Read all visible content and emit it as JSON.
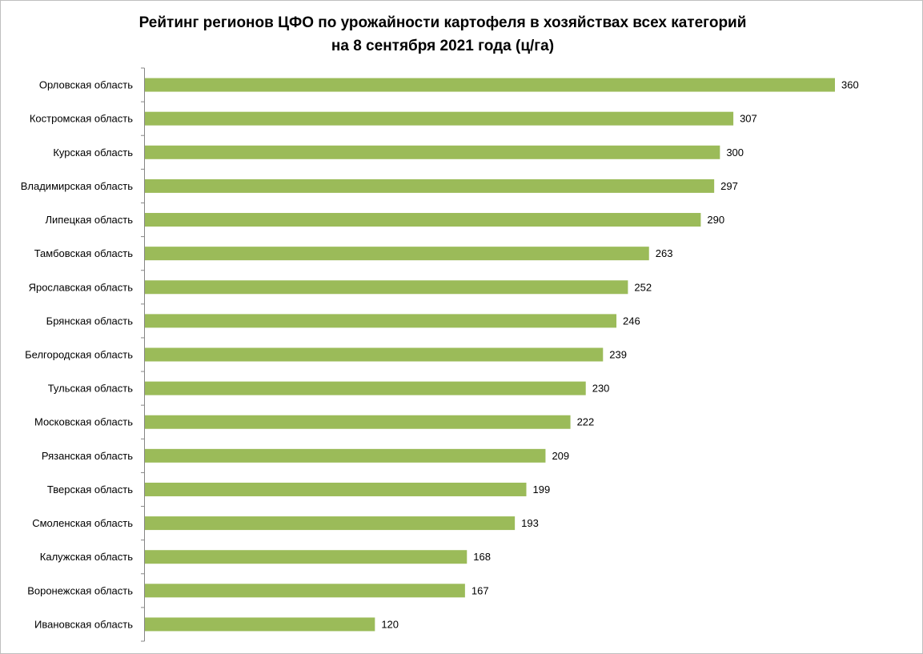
{
  "chart_data": {
    "type": "bar",
    "orientation": "horizontal",
    "title_line1": "Рейтинг регионов ЦФО по урожайности картофеля в хозяйствах всех категорий",
    "title_line2": "на 8 сентября 2021 года (ц/га)",
    "categories": [
      "Орловская область",
      "Костромская область",
      "Курская область",
      "Владимирская область",
      "Липецкая область",
      "Тамбовская область",
      "Ярославская область",
      "Брянская область",
      "Белгородская область",
      "Тульская область",
      "Московская область",
      "Рязанская область",
      "Тверская область",
      "Смоленская область",
      "Калужская область",
      "Воронежская область",
      "Ивановская область"
    ],
    "values": [
      360,
      307,
      300,
      297,
      290,
      263,
      252,
      246,
      239,
      230,
      222,
      209,
      199,
      193,
      168,
      167,
      120
    ],
    "data_labels": true,
    "xlim": [
      0,
      360
    ],
    "grid": false,
    "legend": "none",
    "bar_color": "#9bbb59",
    "axis_color": "#868686"
  }
}
